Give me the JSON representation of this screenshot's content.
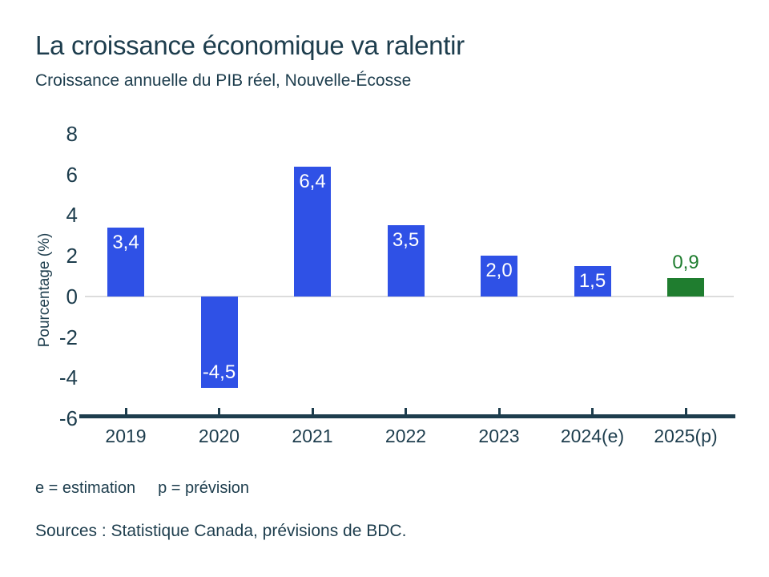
{
  "page": {
    "title": "La croissance économique va ralentir",
    "subtitle": "Croissance annuelle du PIB réel, Nouvelle-Écosse",
    "footnote_e": "e = estimation",
    "footnote_p": "p = prévision",
    "sources": "Sources : Statistique Canada, prévisions de BDC."
  },
  "colors": {
    "bar_default": "#2f51e6",
    "bar_forecast": "#1f7d2f",
    "text_dark": "#1d3d4d",
    "zero_line": "#dcdcdc",
    "bar_label_inside": "#ffffff"
  },
  "chart_data": {
    "type": "bar",
    "title": "La croissance économique va ralentir",
    "subtitle": "Croissance annuelle du PIB réel, Nouvelle-Écosse",
    "categories": [
      "2019",
      "2020",
      "2021",
      "2022",
      "2023",
      "2024(e)",
      "2025(p)"
    ],
    "values": [
      3.4,
      -4.5,
      6.4,
      3.5,
      2.0,
      1.5,
      0.9
    ],
    "value_labels": [
      "3,4",
      "-4,5",
      "6,4",
      "3,5",
      "2,0",
      "1,5",
      "0,9"
    ],
    "bar_colors": [
      "#2f51e6",
      "#2f51e6",
      "#2f51e6",
      "#2f51e6",
      "#2f51e6",
      "#2f51e6",
      "#1f7d2f"
    ],
    "xlabel": "",
    "ylabel": "Pourcentage (%)",
    "ylim": [
      -6,
      8
    ],
    "yticks": [
      8,
      6,
      4,
      2,
      0,
      -2,
      -4,
      -6
    ],
    "grid": "zero-line-only",
    "legend": "none",
    "notes": "2024 is an estimate (e), 2025 is a forecast (p) shown in green with label above the bar"
  }
}
